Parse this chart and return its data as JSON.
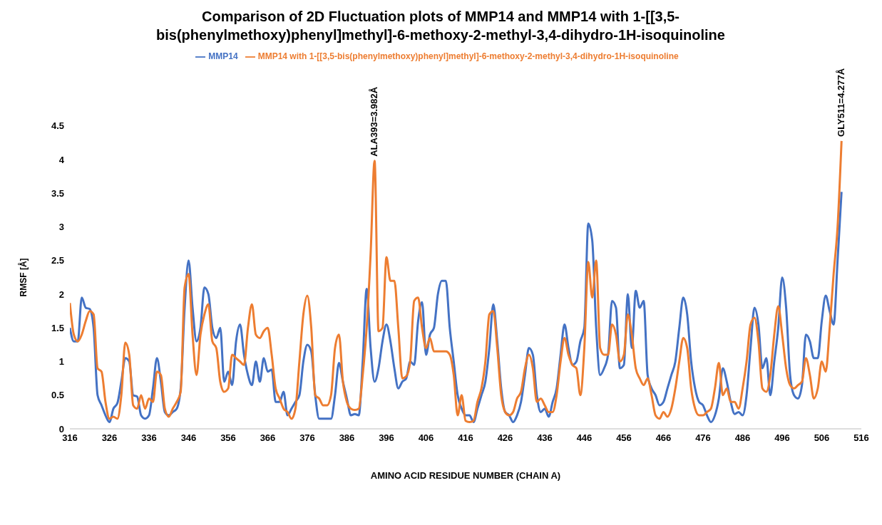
{
  "chart_data": {
    "type": "line",
    "title": "Comparison of 2D Fluctuation plots of MMP14 and MMP14 with 1-[[3,5-bis(phenylmethoxy)phenyl]methyl]-6-methoxy-2-methyl-3,4-dihydro-1H-isoquinoline",
    "xlabel": "AMINO ACID RESIDUE NUMBER (CHAIN A)",
    "ylabel": "RMSF [Å]",
    "x": [
      316,
      317,
      318,
      319,
      320,
      321,
      322,
      323,
      324,
      325,
      326,
      327,
      328,
      329,
      330,
      331,
      332,
      333,
      334,
      335,
      336,
      337,
      338,
      339,
      340,
      341,
      342,
      343,
      344,
      345,
      346,
      347,
      348,
      349,
      350,
      351,
      352,
      353,
      354,
      355,
      356,
      357,
      358,
      359,
      360,
      361,
      362,
      363,
      364,
      365,
      366,
      367,
      368,
      369,
      370,
      371,
      372,
      373,
      374,
      375,
      376,
      377,
      378,
      379,
      380,
      381,
      382,
      383,
      384,
      385,
      386,
      387,
      388,
      389,
      390,
      391,
      392,
      393,
      394,
      395,
      396,
      397,
      398,
      399,
      400,
      401,
      402,
      403,
      404,
      405,
      406,
      407,
      408,
      409,
      410,
      411,
      412,
      413,
      414,
      415,
      416,
      417,
      418,
      419,
      420,
      421,
      422,
      423,
      424,
      425,
      426,
      427,
      428,
      429,
      430,
      431,
      432,
      433,
      434,
      435,
      436,
      437,
      438,
      439,
      440,
      441,
      442,
      443,
      444,
      445,
      446,
      447,
      448,
      449,
      450,
      451,
      452,
      453,
      454,
      455,
      456,
      457,
      458,
      459,
      460,
      461,
      462,
      463,
      464,
      465,
      466,
      467,
      468,
      469,
      470,
      471,
      472,
      473,
      474,
      475,
      476,
      477,
      478,
      479,
      480,
      481,
      482,
      483,
      484,
      485,
      486,
      487,
      488,
      489,
      490,
      491,
      492,
      493,
      494,
      495,
      496,
      497,
      498,
      499,
      500,
      501,
      502,
      503,
      504,
      505,
      506,
      507,
      508,
      509,
      510,
      511
    ],
    "series": [
      {
        "name": "MMP14",
        "color": "#4472c4",
        "values": [
          1.5,
          1.3,
          1.3,
          1.95,
          1.8,
          1.78,
          1.5,
          0.5,
          0.35,
          0.2,
          0.1,
          0.3,
          0.38,
          0.7,
          1.05,
          1.0,
          0.5,
          0.48,
          0.2,
          0.15,
          0.2,
          0.6,
          1.05,
          0.7,
          0.25,
          0.2,
          0.25,
          0.3,
          0.6,
          1.8,
          2.5,
          1.8,
          1.3,
          1.5,
          2.1,
          2.0,
          1.5,
          1.35,
          1.5,
          0.7,
          0.85,
          0.65,
          1.3,
          1.55,
          1.1,
          0.8,
          0.65,
          1.0,
          0.7,
          1.05,
          0.85,
          0.88,
          0.4,
          0.4,
          0.55,
          0.2,
          0.3,
          0.4,
          0.5,
          1.0,
          1.25,
          1.15,
          0.5,
          0.15,
          0.15,
          0.15,
          0.15,
          0.5,
          0.98,
          0.7,
          0.45,
          0.2,
          0.22,
          0.2,
          1.0,
          2.08,
          1.2,
          0.7,
          0.9,
          1.3,
          1.55,
          1.3,
          0.9,
          0.6,
          0.7,
          0.75,
          1.0,
          0.95,
          1.6,
          1.88,
          1.1,
          1.4,
          1.5,
          2.0,
          2.2,
          2.2,
          1.5,
          1.0,
          0.5,
          0.3,
          0.2,
          0.2,
          0.1,
          0.3,
          0.5,
          0.7,
          1.2,
          1.85,
          1.3,
          0.6,
          0.25,
          0.2,
          0.1,
          0.2,
          0.4,
          0.8,
          1.2,
          1.1,
          0.5,
          0.25,
          0.3,
          0.18,
          0.4,
          0.6,
          1.1,
          1.55,
          1.2,
          0.95,
          1.0,
          1.3,
          1.5,
          3.05,
          2.8,
          1.5,
          0.8,
          0.9,
          1.1,
          1.9,
          1.8,
          0.9,
          0.95,
          2.0,
          1.2,
          2.05,
          1.8,
          1.9,
          0.8,
          0.6,
          0.5,
          0.35,
          0.4,
          0.6,
          0.8,
          1.0,
          1.5,
          1.95,
          1.7,
          1.0,
          0.6,
          0.4,
          0.35,
          0.2,
          0.1,
          0.2,
          0.45,
          0.9,
          0.7,
          0.4,
          0.22,
          0.25,
          0.2,
          0.5,
          1.2,
          1.8,
          1.55,
          0.9,
          1.05,
          0.5,
          1.0,
          1.5,
          2.25,
          1.8,
          0.8,
          0.5,
          0.45,
          0.65,
          1.4,
          1.3,
          1.05,
          1.05,
          1.6,
          1.98,
          1.75,
          1.55,
          2.5,
          3.52
        ]
      },
      {
        "name": "MMP14 with 1-[[3,5-bis(phenylmethoxy)phenyl]methyl]-6-methoxy-2-methyl-3,4-dihydro-1H-isoquinoline",
        "color": "#ed7d31",
        "values": [
          1.87,
          1.4,
          1.3,
          1.4,
          1.6,
          1.75,
          1.7,
          0.9,
          0.85,
          0.4,
          0.15,
          0.18,
          0.15,
          0.5,
          1.28,
          1.1,
          0.35,
          0.3,
          0.5,
          0.3,
          0.45,
          0.4,
          0.85,
          0.8,
          0.3,
          0.18,
          0.3,
          0.4,
          0.55,
          2.1,
          2.3,
          1.4,
          0.8,
          1.4,
          1.7,
          1.85,
          1.3,
          1.2,
          0.7,
          0.55,
          0.6,
          1.1,
          1.05,
          1.0,
          0.95,
          1.5,
          1.85,
          1.4,
          1.35,
          1.45,
          1.5,
          1.1,
          0.6,
          0.45,
          0.3,
          0.25,
          0.15,
          0.3,
          1.0,
          1.7,
          1.98,
          1.5,
          0.5,
          0.45,
          0.35,
          0.35,
          0.5,
          1.2,
          1.4,
          0.7,
          0.4,
          0.3,
          0.28,
          0.3,
          0.8,
          1.5,
          2.6,
          3.982,
          1.45,
          1.5,
          2.55,
          2.2,
          2.2,
          1.5,
          0.75,
          0.78,
          1.0,
          1.9,
          1.95,
          1.5,
          1.2,
          1.35,
          1.15,
          1.15,
          1.15,
          1.15,
          1.1,
          0.8,
          0.2,
          0.5,
          0.12,
          0.1,
          0.12,
          0.4,
          0.6,
          1.0,
          1.7,
          1.75,
          1.2,
          0.5,
          0.25,
          0.2,
          0.25,
          0.45,
          0.55,
          0.9,
          1.1,
          0.9,
          0.4,
          0.45,
          0.35,
          0.25,
          0.25,
          0.5,
          1.0,
          1.35,
          1.1,
          0.95,
          0.9,
          0.5,
          1.2,
          2.48,
          1.95,
          2.5,
          1.2,
          1.1,
          1.1,
          1.55,
          1.4,
          1.0,
          1.1,
          1.7,
          1.4,
          0.9,
          0.75,
          0.65,
          0.75,
          0.5,
          0.2,
          0.15,
          0.25,
          0.18,
          0.3,
          0.6,
          1.0,
          1.35,
          1.2,
          0.6,
          0.3,
          0.2,
          0.2,
          0.25,
          0.3,
          0.6,
          0.98,
          0.5,
          0.6,
          0.4,
          0.4,
          0.3,
          0.6,
          1.0,
          1.55,
          1.65,
          1.3,
          0.6,
          0.55,
          0.8,
          1.4,
          1.82,
          1.4,
          0.9,
          0.65,
          0.6,
          0.65,
          0.7,
          1.05,
          0.8,
          0.45,
          0.6,
          1.0,
          0.85,
          1.5,
          2.3,
          3.0,
          4.277
        ]
      }
    ],
    "xlim": [
      316,
      516
    ],
    "xticks": [
      316,
      326,
      336,
      346,
      356,
      366,
      376,
      386,
      396,
      406,
      416,
      426,
      436,
      446,
      456,
      466,
      476,
      486,
      496,
      506,
      516
    ],
    "ylim": [
      0,
      4.5
    ],
    "yticks": [
      0,
      0.5,
      1,
      1.5,
      2,
      2.5,
      3,
      3.5,
      4,
      4.5
    ],
    "annotations": [
      {
        "text": "ALA393=3.982Å",
        "x": 393,
        "y": 3.982
      },
      {
        "text": "GLY511=4.277Å",
        "x": 511,
        "y": 4.277
      }
    ],
    "grid": false,
    "legend": "top",
    "marker": "none",
    "line_style": "solid"
  }
}
